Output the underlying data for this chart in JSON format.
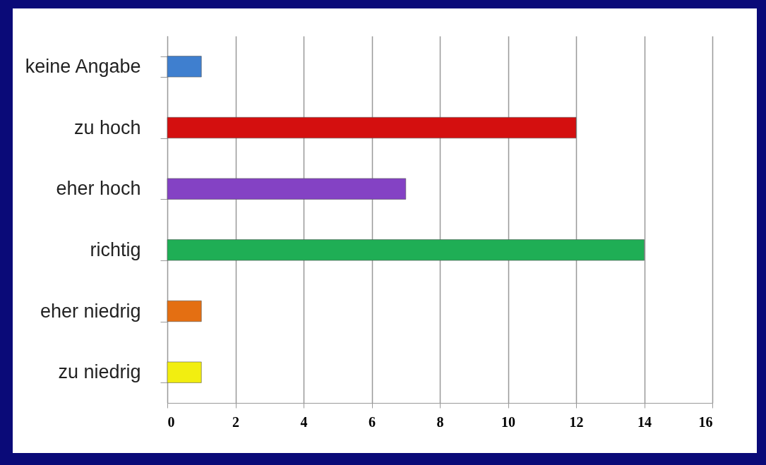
{
  "chart_data": {
    "type": "bar",
    "orientation": "horizontal",
    "categories": [
      "keine Angabe",
      "zu hoch",
      "eher hoch",
      "richtig",
      "eher niedrig",
      "zu niedrig"
    ],
    "values": [
      1,
      12,
      7,
      14,
      1,
      1
    ],
    "colors": [
      "#3f7fcf",
      "#d40f0f",
      "#8442c4",
      "#1fae55",
      "#e46f12",
      "#f2ee10"
    ],
    "xlim": [
      0,
      16
    ],
    "xticks": [
      0,
      2,
      4,
      6,
      8,
      10,
      12,
      14,
      16
    ],
    "grid": "x",
    "legend": false
  }
}
